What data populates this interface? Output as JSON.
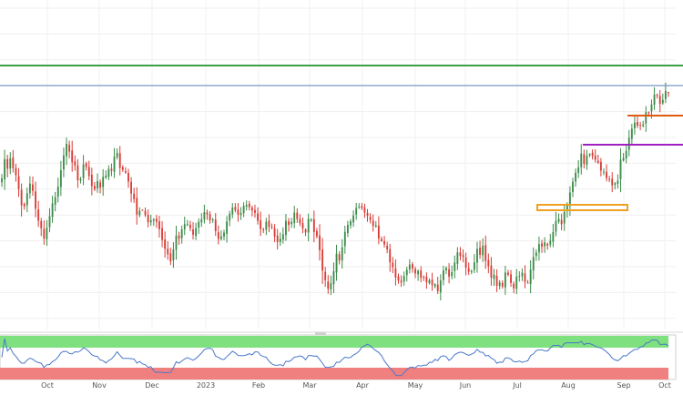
{
  "chart_data": {
    "type": "candlestick",
    "x_axis_labels": [
      "Oct",
      "Nov",
      "Dec",
      "2023",
      "Feb",
      "Mar",
      "Apr",
      "May",
      "Jun",
      "Jul",
      "Aug",
      "Sep",
      "Oct"
    ],
    "overlay_lines": {
      "horizontal_levels": [
        {
          "color": "#3aa04a",
          "name": "resistance-green"
        },
        {
          "color": "#7a98c4",
          "name": "level-blue"
        },
        {
          "color": "#e05a10",
          "name": "support-orange"
        },
        {
          "color": "#a020c0",
          "name": "support-purple"
        }
      ],
      "boxes": [
        {
          "color": "#f0a020",
          "name": "demand-zone-box"
        }
      ]
    },
    "candle_colors": {
      "up": "#3c8c4a",
      "down": "#d93c36"
    },
    "indicator_panel": {
      "type": "oscillator",
      "upper_band_color": "#7fe07f",
      "lower_band_color": "#f08080",
      "line_color": "#4a78c8"
    },
    "closes": [
      1.0895,
      1.1038,
      1.0966,
      1.1043,
      1.0972,
      1.0918,
      1.0815,
      1.0694,
      1.0686,
      1.0783,
      1.0856,
      1.0802,
      1.0669,
      1.0579,
      1.0523,
      1.0447,
      1.0526,
      1.0613,
      1.0708,
      1.0755,
      1.0832,
      1.0955,
      1.1065,
      1.1152,
      1.1094,
      1.1015,
      1.099,
      1.0881,
      1.0892,
      1.0998,
      1.0979,
      1.0912,
      1.0837,
      1.0814,
      1.0874,
      1.0826,
      1.0906,
      1.0915,
      1.0965,
      1.0951,
      1.1056,
      1.1085,
      1.0973,
      1.0958,
      1.0937,
      1.087,
      1.0781,
      1.0741,
      1.0625,
      1.0652,
      1.0659,
      1.0621,
      1.0567,
      1.0582,
      1.059,
      1.0571,
      1.0516,
      1.0436,
      1.037,
      1.033,
      1.0276,
      1.0365,
      1.0469,
      1.0445,
      1.0515,
      1.0554,
      1.0554,
      1.0524,
      1.0475,
      1.0525,
      1.0571,
      1.059,
      1.0643,
      1.0627,
      1.0582,
      1.0588,
      1.0502,
      1.0442,
      1.0463,
      1.0491,
      1.0573,
      1.0631,
      1.0677,
      1.0659,
      1.0625,
      1.0637,
      1.0691,
      1.0696,
      1.068,
      1.0656,
      1.0638,
      1.0578,
      1.0517,
      1.0511,
      1.0572,
      1.0533,
      1.0532,
      1.046,
      1.0421,
      1.0446,
      1.0478,
      1.0578,
      1.0548,
      1.057,
      1.064,
      1.0592,
      1.056,
      1.0522,
      1.0492,
      1.0592,
      1.0591,
      1.0495,
      1.0463,
      1.036,
      1.0208,
      1.0136,
      1.0072,
      1.0114,
      1.0203,
      1.0334,
      1.0283,
      1.0381,
      1.0496,
      1.0548,
      1.0575,
      1.0619,
      1.0674,
      1.0683,
      1.0674,
      1.064,
      1.0615,
      1.0585,
      1.0541,
      1.0544,
      1.0446,
      1.0428,
      1.0402,
      1.0366,
      1.0269,
      1.0233,
      1.0156,
      1.0134,
      1.0119,
      1.0168,
      1.0214,
      1.0253,
      1.0223,
      1.0186,
      1.0206,
      1.0153,
      1.016,
      1.0122,
      1.0136,
      1.01,
      1.0107,
      1.0054,
      1.0135,
      1.021,
      1.0228,
      1.0163,
      1.0196,
      1.0268,
      1.0343,
      1.0317,
      1.031,
      1.023,
      1.0199,
      1.0204,
      1.027,
      1.0369,
      1.0325,
      1.0392,
      1.028,
      1.024,
      1.0155,
      1.0177,
      1.0095,
      1.012,
      1.009,
      1.0193,
      1.0176,
      1.0116,
      1.0076,
      1.0163,
      1.0168,
      1.0193,
      1.0123,
      1.0116,
      1.0216,
      1.0309,
      1.0342,
      1.0406,
      1.0385,
      1.0417,
      1.0394,
      1.0431,
      1.0495,
      1.0577,
      1.0593,
      1.0553,
      1.0646,
      1.0695,
      1.079,
      1.0869,
      1.0937,
      1.0977,
      1.1079,
      1.1002,
      1.1064,
      1.1077,
      1.1061,
      1.1033,
      1.1011,
      1.0952,
      1.0945,
      1.0897,
      1.0885,
      1.0843,
      1.0859,
      1.0878,
      1.1034,
      1.1046,
      1.1099,
      1.1196,
      1.1265,
      1.131,
      1.1286,
      1.1287,
      1.1296,
      1.1387,
      1.1385,
      1.1445,
      1.1518,
      1.1511,
      1.1449,
      1.1479,
      1.1545,
      1.1534
    ]
  }
}
